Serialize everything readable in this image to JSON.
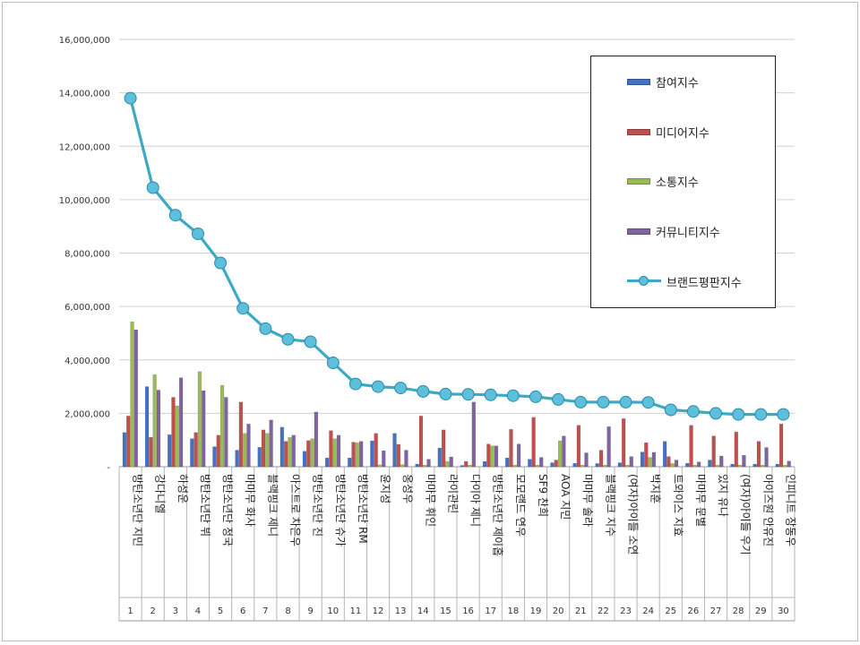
{
  "chart_data": {
    "type": "bar",
    "ylim": [
      0,
      16000000
    ],
    "y_ticks": [
      "-",
      "2,000,000",
      "4,000,000",
      "6,000,000",
      "8,000,000",
      "10,000,000",
      "12,000,000",
      "14,000,000",
      "16,000,000"
    ],
    "grid": true,
    "legend_position": "top-right",
    "ranks": [
      "1",
      "2",
      "3",
      "4",
      "5",
      "6",
      "7",
      "8",
      "9",
      "10",
      "11",
      "12",
      "13",
      "14",
      "15",
      "16",
      "17",
      "18",
      "19",
      "20",
      "21",
      "22",
      "23",
      "24",
      "25",
      "26",
      "27",
      "28",
      "29",
      "30"
    ],
    "categories": [
      "방탄소년단 지민",
      "강다니엘",
      "하성운",
      "방탄소년단 뷔",
      "방탄소년단 정국",
      "마마무 화사",
      "블랙핑크 제니",
      "아스트로 차은우",
      "방탄소년단 진",
      "방탄소년단 슈가",
      "방탄소년단 RM",
      "윤지성",
      "옹성우",
      "마마무 휘인",
      "라이관린",
      "다이아 제니",
      "방탄소년단 제이홉",
      "모모랜드 연우",
      "SF9 찬희",
      "AOA 지민",
      "마마무 솔라",
      "블랙핑크 지수",
      "(여자)아이들 소연",
      "박지훈",
      "트와이스 지효",
      "마마무 문별",
      "있지 유나",
      "(여자)아이들 우기",
      "아이즈원 안유진",
      "인피니트 장동우"
    ],
    "series": [
      {
        "name": "참여지수",
        "kind": "bar",
        "color": "#4472c4",
        "values": [
          1280000,
          3000000,
          1200000,
          1050000,
          750000,
          620000,
          730000,
          1480000,
          580000,
          330000,
          330000,
          970000,
          1250000,
          100000,
          700000,
          50000,
          200000,
          330000,
          280000,
          150000,
          130000,
          120000,
          150000,
          550000,
          950000,
          130000,
          250000,
          100000,
          100000,
          100000
        ]
      },
      {
        "name": "미디어지수",
        "kind": "bar",
        "color": "#c0504d",
        "values": [
          1900000,
          1100000,
          2600000,
          1280000,
          1180000,
          2420000,
          1380000,
          950000,
          980000,
          1350000,
          920000,
          1250000,
          840000,
          1900000,
          1380000,
          200000,
          850000,
          1400000,
          1850000,
          250000,
          1550000,
          620000,
          1800000,
          900000,
          380000,
          1550000,
          1150000,
          1300000,
          950000,
          1600000
        ]
      },
      {
        "name": "소통지수",
        "kind": "bar",
        "color": "#9bbb59",
        "values": [
          5430000,
          3450000,
          2280000,
          3560000,
          3050000,
          1250000,
          1250000,
          1100000,
          1050000,
          1050000,
          900000,
          70000,
          80000,
          60000,
          200000,
          60000,
          780000,
          60000,
          60000,
          970000,
          60000,
          60000,
          60000,
          350000,
          120000,
          60000,
          60000,
          60000,
          60000,
          60000
        ]
      },
      {
        "name": "커뮤니티지수",
        "kind": "bar",
        "color": "#8064a2",
        "values": [
          5130000,
          2870000,
          3330000,
          2850000,
          2600000,
          1600000,
          1750000,
          1180000,
          2050000,
          1180000,
          950000,
          600000,
          620000,
          280000,
          370000,
          2420000,
          780000,
          850000,
          350000,
          1150000,
          520000,
          1500000,
          380000,
          540000,
          250000,
          180000,
          400000,
          430000,
          720000,
          210000
        ]
      },
      {
        "name": "브랜드평판지수",
        "kind": "line",
        "color": "#3aaac8",
        "values": [
          13800000,
          10450000,
          9420000,
          8720000,
          7630000,
          5930000,
          5170000,
          4770000,
          4680000,
          3890000,
          3100000,
          3000000,
          2950000,
          2820000,
          2720000,
          2710000,
          2690000,
          2660000,
          2620000,
          2520000,
          2420000,
          2420000,
          2420000,
          2410000,
          2130000,
          2070000,
          2000000,
          1960000,
          1960000,
          1960000
        ]
      }
    ]
  }
}
